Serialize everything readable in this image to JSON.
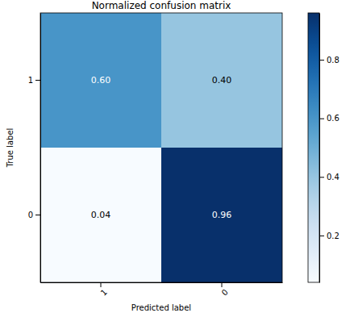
{
  "chart_data": {
    "type": "heatmap",
    "title": "Normalized confusion matrix",
    "x_label": "Predicted label",
    "y_label": "True label",
    "x_categories": [
      "1",
      "0"
    ],
    "y_categories": [
      "1",
      "0"
    ],
    "values": [
      [
        0.6,
        0.4
      ],
      [
        0.04,
        0.96
      ]
    ],
    "value_labels": [
      [
        "0.60",
        "0.40"
      ],
      [
        "0.04",
        "0.96"
      ]
    ],
    "data_labels": true,
    "color": "Blues",
    "colorbar": {
      "range": [
        0.04,
        0.96
      ],
      "ticks": [
        0.2,
        0.4,
        0.6,
        0.8
      ]
    }
  }
}
